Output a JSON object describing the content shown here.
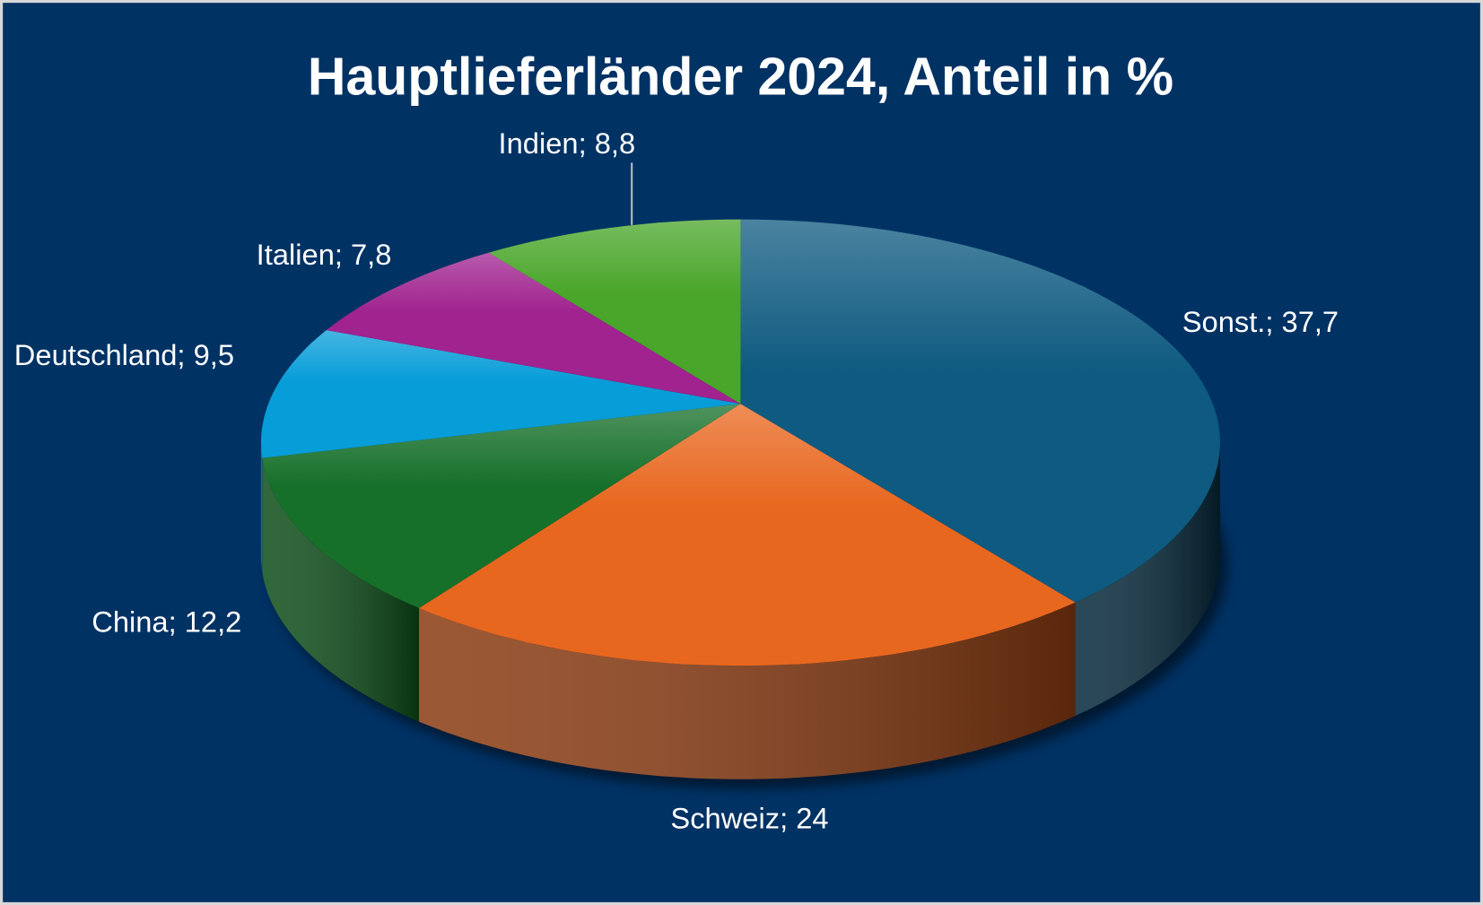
{
  "chart_data": {
    "type": "pie",
    "variant": "3d",
    "title": "Hauptlieferländer 2024, Anteil in %",
    "slices": [
      {
        "label": "Sonst.; 37,7",
        "name": "Sonst.",
        "value": 37.7,
        "color": "#0e5a80",
        "side": "#05283a"
      },
      {
        "label": "Schweiz; 24",
        "name": "Schweiz",
        "value": 24,
        "color": "#e8671f",
        "side": "#8a3a10"
      },
      {
        "label": "China; 12,2",
        "name": "China",
        "value": 12.2,
        "color": "#16702a",
        "side": "#0c4d18"
      },
      {
        "label": "Deutschland; 9,5",
        "name": "Deutschland",
        "value": 9.5,
        "color": "#079dd8",
        "side": "#05628a"
      },
      {
        "label": "Italien; 7,8",
        "name": "Italien",
        "value": 7.8,
        "color": "#a0238f",
        "side": "#5e1454"
      },
      {
        "label": "Indien; 8,8",
        "name": "Indien",
        "value": 8.8,
        "color": "#4aa62a",
        "side": "#2c6a18"
      }
    ],
    "background": "#003264"
  }
}
